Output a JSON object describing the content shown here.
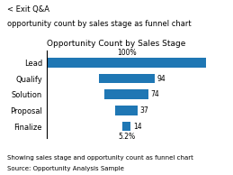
{
  "chart_data": {
    "type": "funnel",
    "title": "Opportunity Count by Sales Stage",
    "header": "< Exit Q&A",
    "subtitle": "opportunity count by sales stage as funnel chart",
    "notes": [
      "Showing sales stage and opportunity count as funnel chart",
      "Source: Opportunity Analysis Sample"
    ],
    "categories": [
      "Lead",
      "Qualify",
      "Solution",
      "Proposal",
      "Finalize"
    ],
    "values": [
      269,
      94,
      74,
      37,
      14
    ],
    "value_labels": [
      null,
      "94",
      "74",
      "37",
      "14"
    ],
    "data_labels": true,
    "orientation": "horizontal",
    "tick_labels": "y",
    "grid": false,
    "annotations": [
      {
        "category": "Lead",
        "value": 100,
        "label": "100%"
      },
      {
        "category": "Finalize",
        "value": 5.2,
        "label": "5.2%"
      }
    ]
  }
}
